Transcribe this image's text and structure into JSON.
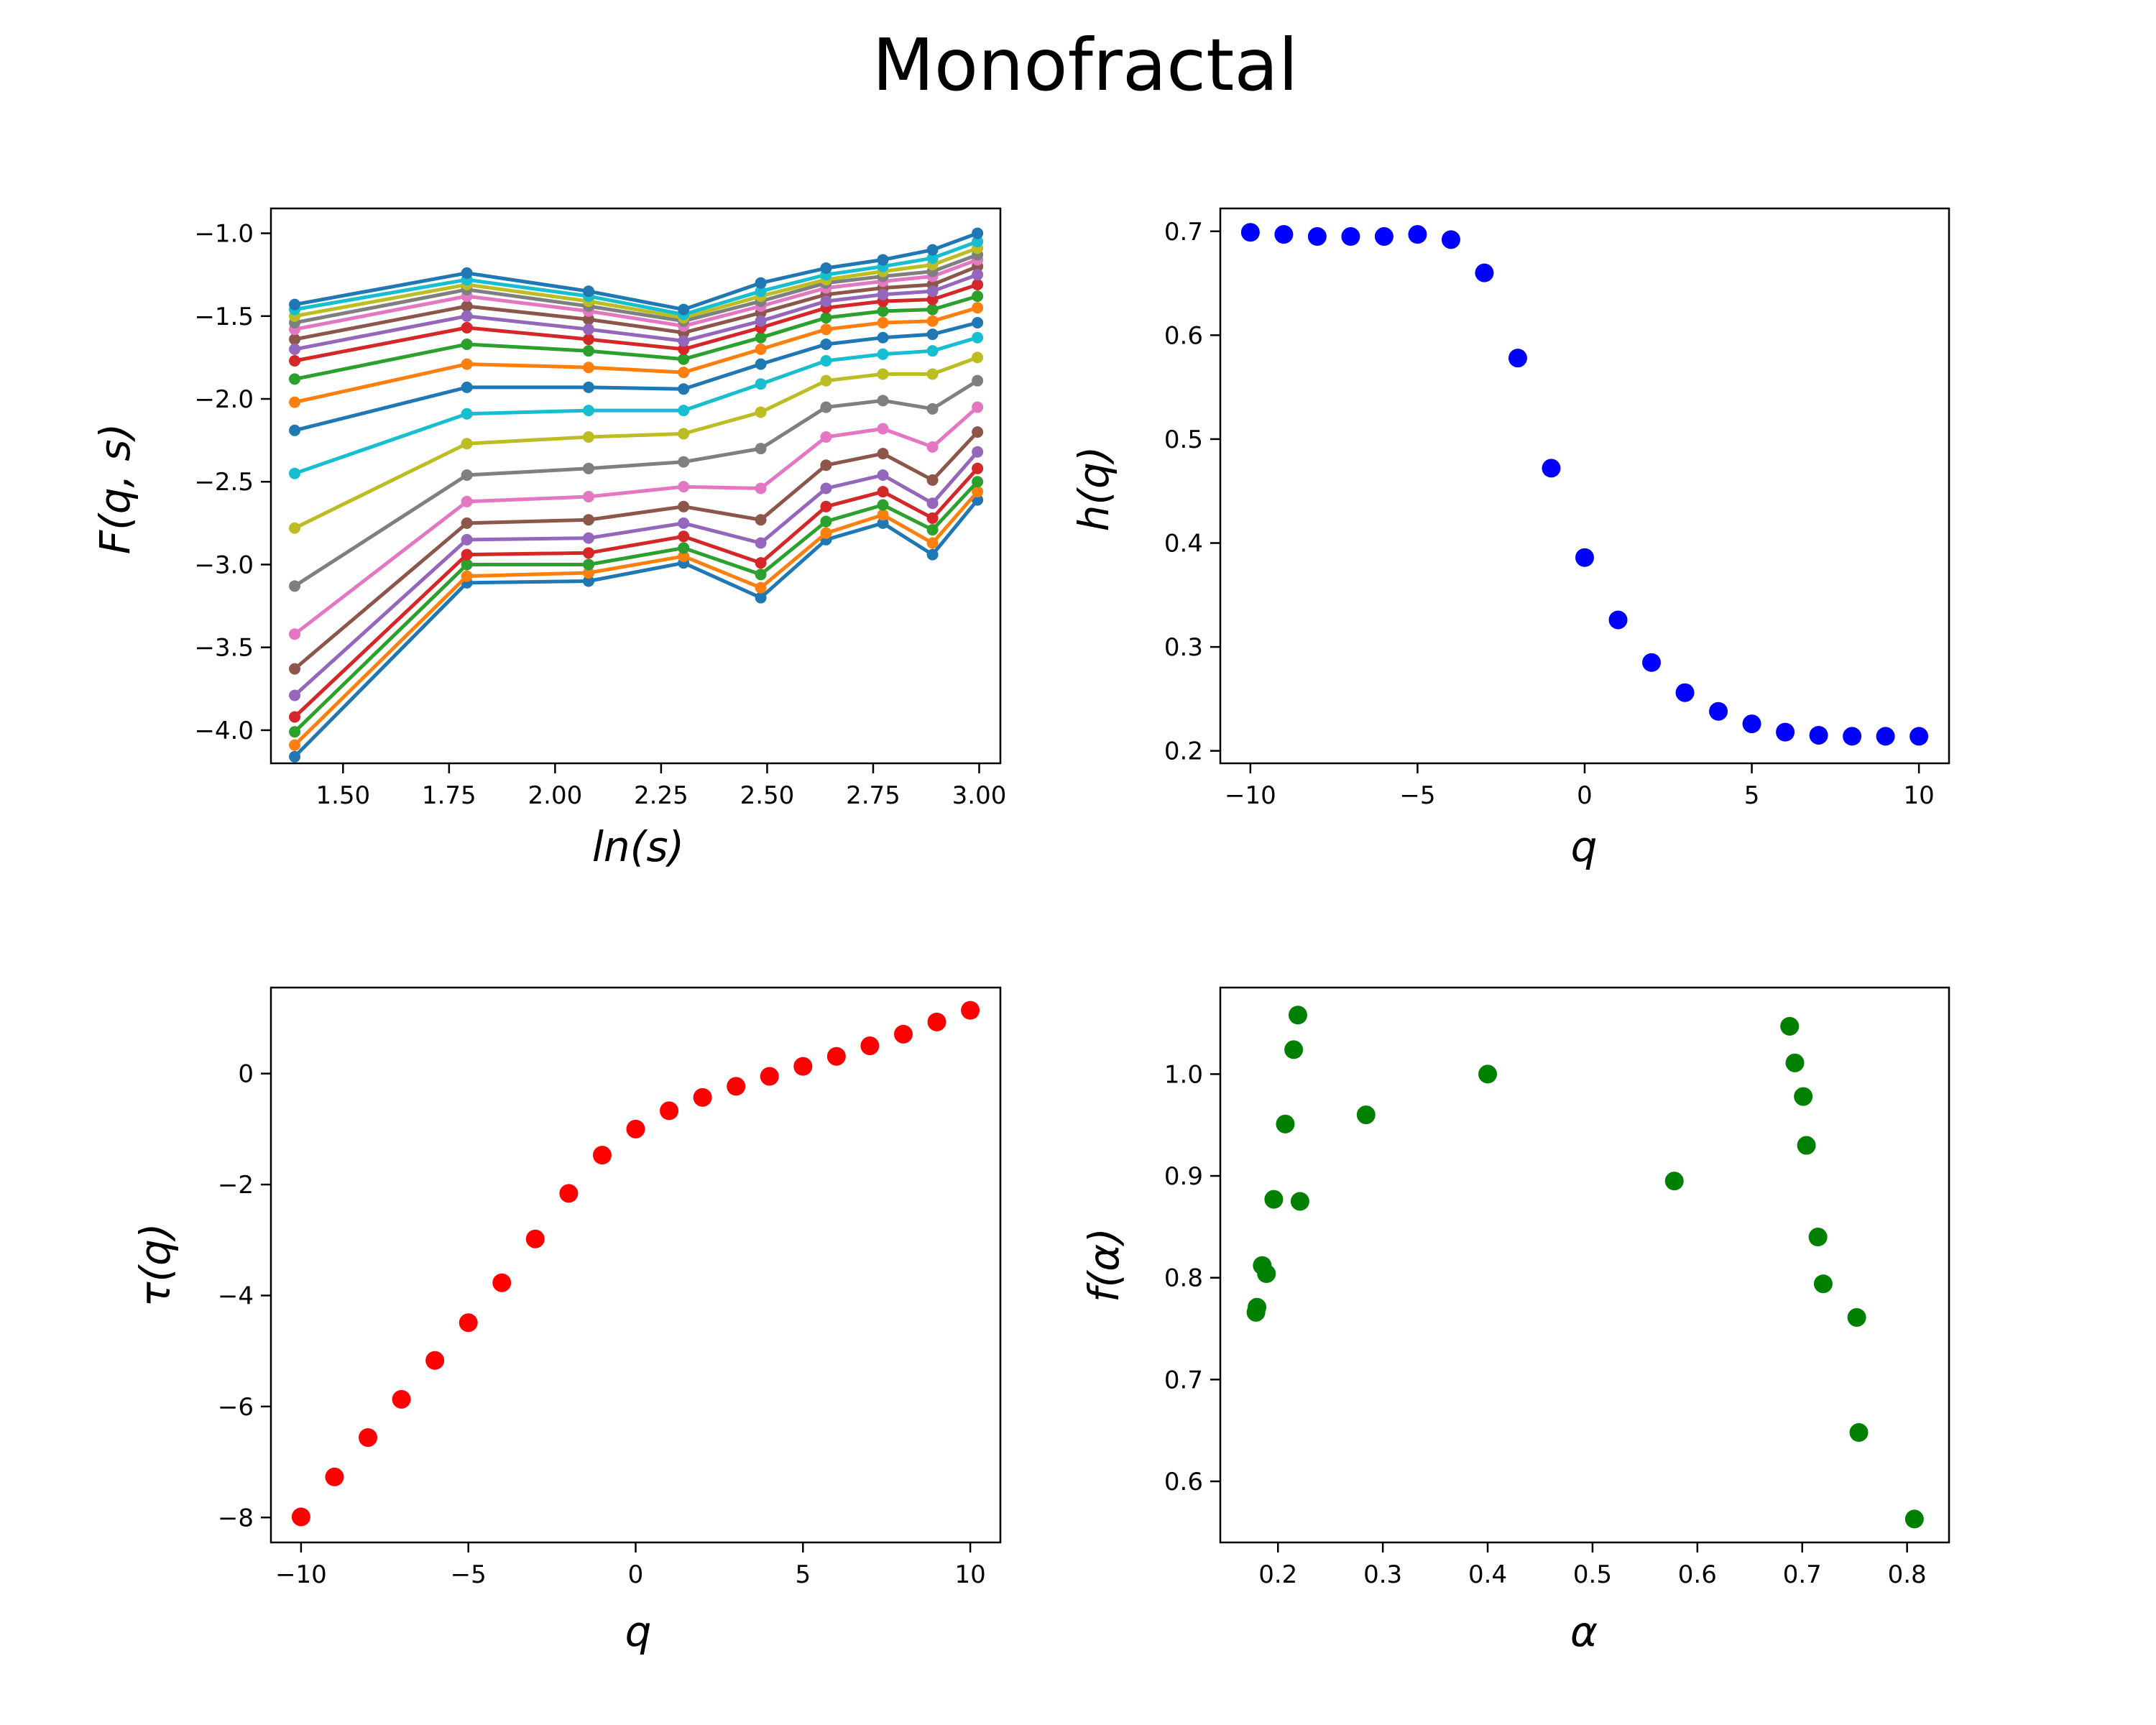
{
  "title": "Monofractal",
  "chart_data": [
    {
      "id": "fqs",
      "type": "line",
      "xlabel": "ln(s)",
      "ylabel": "F(q, s)",
      "xlim": [
        1.33,
        3.05
      ],
      "ylim": [
        -4.2,
        -0.85
      ],
      "xticks": [
        1.5,
        1.75,
        2.0,
        2.25,
        2.5,
        2.75,
        3.0
      ],
      "xtick_labels": [
        "1.50",
        "1.75",
        "2.00",
        "2.25",
        "2.50",
        "2.75",
        "3.00"
      ],
      "yticks": [
        -4.0,
        -3.5,
        -3.0,
        -2.5,
        -2.0,
        -1.5,
        -1.0
      ],
      "ytick_labels": [
        "−4.0",
        "−3.5",
        "−3.0",
        "−2.5",
        "−2.0",
        "−1.5",
        "−1.0"
      ],
      "grid": false,
      "x": [
        1.386,
        1.792,
        2.079,
        2.303,
        2.485,
        2.639,
        2.773,
        2.89,
        2.996
      ],
      "series": [
        {
          "color": "#1f77b4",
          "values": [
            -4.16,
            -3.11,
            -3.1,
            -2.99,
            -3.2,
            -2.85,
            -2.75,
            -2.94,
            -2.61
          ]
        },
        {
          "color": "#ff7f0e",
          "values": [
            -4.09,
            -3.07,
            -3.05,
            -2.95,
            -3.14,
            -2.81,
            -2.7,
            -2.87,
            -2.56
          ]
        },
        {
          "color": "#2ca02c",
          "values": [
            -4.01,
            -3.0,
            -3.0,
            -2.9,
            -3.06,
            -2.74,
            -2.64,
            -2.79,
            -2.5
          ]
        },
        {
          "color": "#d62728",
          "values": [
            -3.92,
            -2.94,
            -2.93,
            -2.83,
            -2.99,
            -2.65,
            -2.56,
            -2.72,
            -2.42
          ]
        },
        {
          "color": "#9467bd",
          "values": [
            -3.79,
            -2.85,
            -2.84,
            -2.75,
            -2.87,
            -2.54,
            -2.46,
            -2.63,
            -2.32
          ]
        },
        {
          "color": "#8c564b",
          "values": [
            -3.63,
            -2.75,
            -2.73,
            -2.65,
            -2.73,
            -2.4,
            -2.33,
            -2.49,
            -2.2
          ]
        },
        {
          "color": "#e377c2",
          "values": [
            -3.42,
            -2.62,
            -2.59,
            -2.53,
            -2.54,
            -2.23,
            -2.18,
            -2.29,
            -2.05
          ]
        },
        {
          "color": "#7f7f7f",
          "values": [
            -3.13,
            -2.46,
            -2.42,
            -2.38,
            -2.3,
            -2.05,
            -2.01,
            -2.06,
            -1.89
          ]
        },
        {
          "color": "#bcbd22",
          "values": [
            -2.78,
            -2.27,
            -2.23,
            -2.21,
            -2.08,
            -1.89,
            -1.85,
            -1.85,
            -1.75
          ]
        },
        {
          "color": "#17becf",
          "values": [
            -2.45,
            -2.09,
            -2.07,
            -2.07,
            -1.91,
            -1.77,
            -1.73,
            -1.71,
            -1.63
          ]
        },
        {
          "color": "#1f77b4",
          "values": [
            -2.19,
            -1.93,
            -1.93,
            -1.94,
            -1.79,
            -1.67,
            -1.63,
            -1.61,
            -1.54
          ]
        },
        {
          "color": "#ff7f0e",
          "values": [
            -2.02,
            -1.79,
            -1.81,
            -1.84,
            -1.7,
            -1.58,
            -1.54,
            -1.53,
            -1.45
          ]
        },
        {
          "color": "#2ca02c",
          "values": [
            -1.88,
            -1.67,
            -1.71,
            -1.76,
            -1.63,
            -1.51,
            -1.47,
            -1.46,
            -1.38
          ]
        },
        {
          "color": "#d62728",
          "values": [
            -1.77,
            -1.57,
            -1.64,
            -1.7,
            -1.57,
            -1.45,
            -1.41,
            -1.4,
            -1.31
          ]
        },
        {
          "color": "#8c564b",
          "values": [
            -1.64,
            -1.44,
            -1.52,
            -1.6,
            -1.48,
            -1.37,
            -1.33,
            -1.31,
            -1.2
          ]
        },
        {
          "color": "#9467bd",
          "values": [
            -1.7,
            -1.5,
            -1.58,
            -1.65,
            -1.53,
            -1.41,
            -1.37,
            -1.35,
            -1.25
          ]
        },
        {
          "color": "#e377c2",
          "values": [
            -1.58,
            -1.38,
            -1.47,
            -1.56,
            -1.44,
            -1.33,
            -1.29,
            -1.26,
            -1.16
          ]
        },
        {
          "color": "#7f7f7f",
          "values": [
            -1.54,
            -1.34,
            -1.44,
            -1.53,
            -1.41,
            -1.3,
            -1.26,
            -1.23,
            -1.13
          ]
        },
        {
          "color": "#bcbd22",
          "values": [
            -1.5,
            -1.31,
            -1.41,
            -1.51,
            -1.38,
            -1.28,
            -1.23,
            -1.19,
            -1.09
          ]
        },
        {
          "color": "#17becf",
          "values": [
            -1.46,
            -1.28,
            -1.38,
            -1.49,
            -1.35,
            -1.25,
            -1.2,
            -1.15,
            -1.05
          ]
        },
        {
          "color": "#1f77b4",
          "values": [
            -1.43,
            -1.24,
            -1.35,
            -1.46,
            -1.3,
            -1.21,
            -1.16,
            -1.1,
            -1.0
          ]
        }
      ]
    },
    {
      "id": "hq",
      "type": "scatter",
      "xlabel": "q",
      "ylabel": "h(q)",
      "xlim": [
        -10.9,
        10.9
      ],
      "ylim": [
        0.188,
        0.722
      ],
      "xticks": [
        -10,
        -5,
        0,
        5,
        10
      ],
      "xtick_labels": [
        "−10",
        "−5",
        "0",
        "5",
        "10"
      ],
      "yticks": [
        0.2,
        0.3,
        0.4,
        0.5,
        0.6,
        0.7
      ],
      "ytick_labels": [
        "0.2",
        "0.3",
        "0.4",
        "0.5",
        "0.6",
        "0.7"
      ],
      "grid": false,
      "color": "#0000ff",
      "x": [
        -10,
        -9,
        -8,
        -7,
        -6,
        -5,
        -4,
        -3,
        -2,
        -1,
        0,
        1,
        2,
        3,
        4,
        5,
        6,
        7,
        8,
        9,
        10
      ],
      "y": [
        0.699,
        0.697,
        0.695,
        0.695,
        0.695,
        0.697,
        0.692,
        0.66,
        0.578,
        0.472,
        0.386,
        0.326,
        0.285,
        0.256,
        0.238,
        0.226,
        0.218,
        0.215,
        0.214,
        0.214,
        0.214
      ]
    },
    {
      "id": "tauq",
      "type": "scatter",
      "xlabel": "τ(q)",
      "xlabel_is_y": true,
      "ylabel": "τ(q)",
      "xaxis_label": "q",
      "xlim": [
        -10.9,
        10.9
      ],
      "ylim": [
        -8.45,
        1.55
      ],
      "xticks": [
        -10,
        -5,
        0,
        5,
        10
      ],
      "xtick_labels": [
        "−10",
        "−5",
        "0",
        "5",
        "10"
      ],
      "yticks": [
        -8,
        -6,
        -4,
        -2,
        0
      ],
      "ytick_labels": [
        "−8",
        "−6",
        "−4",
        "−2",
        "0"
      ],
      "grid": false,
      "color": "#ff0000",
      "x": [
        -10,
        -9,
        -8,
        -7,
        -6,
        -5,
        -4,
        -3,
        -2,
        -1,
        0,
        1,
        2,
        3,
        4,
        5,
        6,
        7,
        8,
        9,
        10
      ],
      "y": [
        -7.99,
        -7.27,
        -6.56,
        -5.87,
        -5.17,
        -4.49,
        -3.77,
        -2.98,
        -2.16,
        -1.47,
        -1.0,
        -0.67,
        -0.43,
        -0.23,
        -0.05,
        0.13,
        0.31,
        0.5,
        0.71,
        0.93,
        1.14
      ]
    },
    {
      "id": "falpha",
      "type": "scatter",
      "xlabel": "α",
      "ylabel": "f(α)",
      "xlim": [
        0.145,
        0.84
      ],
      "ylim": [
        0.54,
        1.085
      ],
      "xticks": [
        0.2,
        0.3,
        0.4,
        0.5,
        0.6,
        0.7,
        0.8
      ],
      "xtick_labels": [
        "0.2",
        "0.3",
        "0.4",
        "0.5",
        "0.6",
        "0.7",
        "0.8"
      ],
      "yticks": [
        0.6,
        0.7,
        0.8,
        0.9,
        1.0
      ],
      "ytick_labels": [
        "0.6",
        "0.7",
        "0.8",
        "0.9",
        "1.0"
      ],
      "grid": false,
      "color": "#008000",
      "x": [
        0.807,
        0.754,
        0.752,
        0.72,
        0.715,
        0.704,
        0.701,
        0.693,
        0.688,
        0.578,
        0.4,
        0.284,
        0.221,
        0.219,
        0.215,
        0.207,
        0.196,
        0.189,
        0.185,
        0.18,
        0.179
      ],
      "y": [
        0.563,
        0.648,
        0.761,
        0.794,
        0.84,
        0.93,
        0.978,
        1.011,
        1.047,
        0.895,
        1.0,
        0.96,
        0.875,
        1.058,
        1.024,
        0.951,
        0.877,
        0.804,
        0.812,
        0.771,
        0.766
      ]
    }
  ],
  "axis_texts": {
    "fqs_x": "ln",
    "fqs_x2": "(",
    "fqs_x3": "s",
    "fqs_x4": ")",
    "fqs_y": "F(q, s)",
    "hq_x": "q",
    "hq_y": "h(q)",
    "tauq_x": "q",
    "tauq_y": "τ(q)",
    "falpha_x": "α",
    "falpha_y": "f(α)"
  }
}
